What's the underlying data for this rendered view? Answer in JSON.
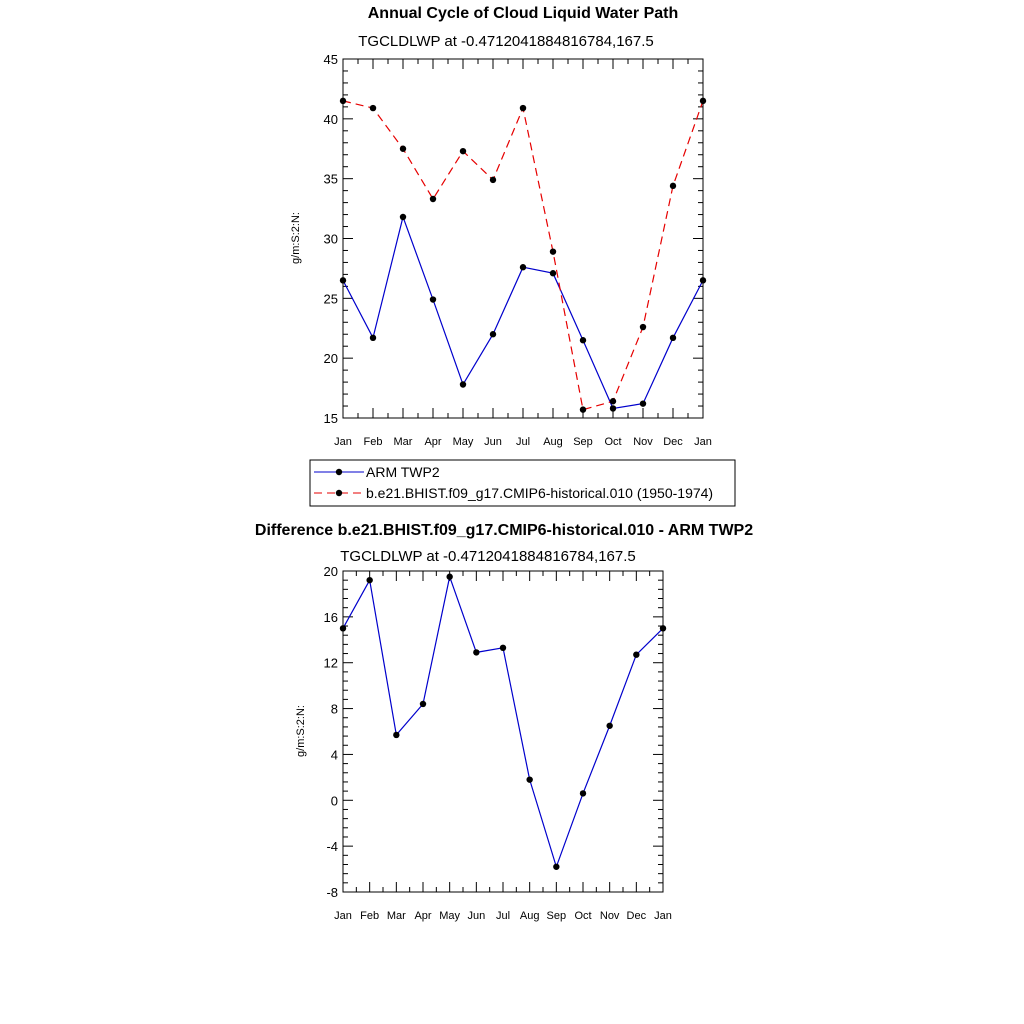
{
  "chart_data": [
    {
      "type": "line",
      "title": "Annual Cycle of Cloud Liquid Water Path",
      "subtitle": "TGCLDLWP at -0.4712041884816784,167.5",
      "ylabel": "g/m:S:2:N:",
      "xlabel": "",
      "ylim": [
        15,
        45
      ],
      "yticks": [
        "15",
        "20",
        "25",
        "30",
        "35",
        "40",
        "45"
      ],
      "categories": [
        "Jan",
        "Feb",
        "Mar",
        "Apr",
        "May",
        "Jun",
        "Jul",
        "Aug",
        "Sep",
        "Oct",
        "Nov",
        "Dec",
        "Jan"
      ],
      "series": [
        {
          "name": "ARM TWP2",
          "color": "#0000cc",
          "dash": "solid",
          "values": [
            26.5,
            21.7,
            31.8,
            24.9,
            17.8,
            22.0,
            27.6,
            27.1,
            21.5,
            15.8,
            16.2,
            21.7,
            26.5
          ]
        },
        {
          "name": "b.e21.BHIST.f09_g17.CMIP6-historical.010 (1950-1974)",
          "color": "#e60000",
          "dash": "dashed",
          "values": [
            41.5,
            40.9,
            37.5,
            33.3,
            37.3,
            34.9,
            40.9,
            28.9,
            15.7,
            16.4,
            22.6,
            34.4,
            41.5
          ]
        }
      ],
      "legend": [
        "ARM TWP2",
        "b.e21.BHIST.f09_g17.CMIP6-historical.010 (1950-1974)"
      ]
    },
    {
      "type": "line",
      "title": "Difference b.e21.BHIST.f09_g17.CMIP6-historical.010 - ARM TWP2",
      "subtitle": "TGCLDLWP at -0.4712041884816784,167.5",
      "ylabel": "g/m:S:2:N:",
      "xlabel": "",
      "ylim": [
        -8,
        20
      ],
      "yticks": [
        "-8",
        "-4",
        "0",
        "4",
        "8",
        "12",
        "16",
        "20"
      ],
      "categories": [
        "Jan",
        "Feb",
        "Mar",
        "Apr",
        "May",
        "Jun",
        "Jul",
        "Aug",
        "Sep",
        "Oct",
        "Nov",
        "Dec",
        "Jan"
      ],
      "series": [
        {
          "name": "Difference",
          "color": "#0000cc",
          "dash": "solid",
          "values": [
            15.0,
            19.2,
            5.7,
            8.4,
            19.5,
            12.9,
            13.3,
            1.8,
            -5.8,
            0.6,
            6.5,
            12.7,
            15.0
          ]
        }
      ]
    }
  ]
}
